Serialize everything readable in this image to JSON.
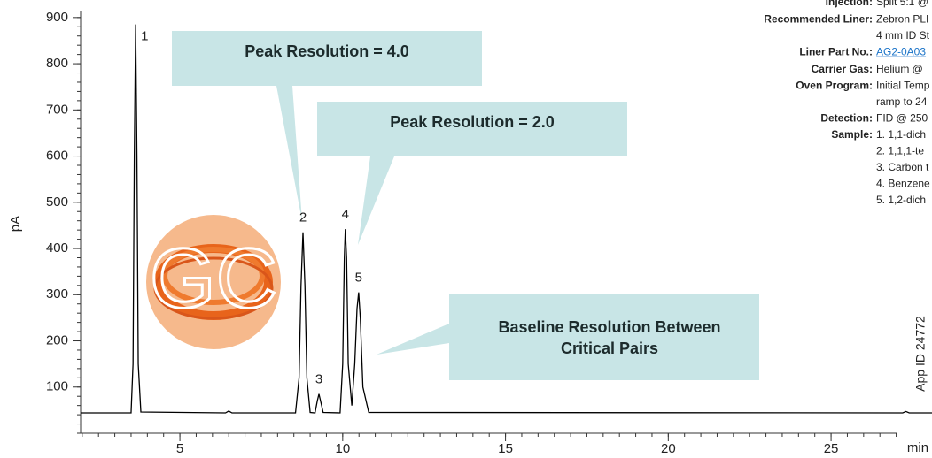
{
  "chart_data": {
    "type": "line",
    "color": "#000000",
    "x": [
      1.95,
      3.5,
      3.56,
      3.6,
      3.64,
      3.68,
      3.72,
      3.8,
      6.4,
      6.5,
      6.6,
      8.55,
      8.66,
      8.72,
      8.78,
      8.84,
      8.9,
      9.0,
      9.15,
      9.22,
      9.27,
      9.32,
      9.4,
      9.92,
      10.0,
      10.05,
      10.08,
      10.12,
      10.17,
      10.28,
      10.37,
      10.44,
      10.49,
      10.54,
      10.62,
      10.8,
      27.2,
      27.3,
      27.4,
      28.1
    ],
    "values": [
      44,
      44,
      150,
      600,
      885,
      600,
      150,
      46,
      44,
      48,
      44,
      44,
      120,
      320,
      435,
      320,
      120,
      45,
      44,
      70,
      85,
      70,
      45,
      44,
      150,
      380,
      442,
      380,
      150,
      60,
      150,
      270,
      305,
      250,
      100,
      45,
      44,
      47,
      44,
      44
    ],
    "peak_labels": [
      "1",
      "2",
      "3",
      "4",
      "5"
    ],
    "xlim": [
      1.95,
      28.1
    ],
    "ylim": [
      0,
      915
    ],
    "xticks": [
      5,
      10,
      15,
      20,
      25
    ],
    "yticks": [
      100,
      200,
      300,
      400,
      500,
      600,
      700,
      800,
      900
    ],
    "xminor_step": 0.5,
    "yminor_step": 20,
    "xlabel": "min",
    "ylabel": "pA"
  },
  "callouts": [
    [
      "Peak Resolution = 4.0"
    ],
    [
      "Peak Resolution = 2.0"
    ],
    [
      "Baseline Resolution Between",
      "Critical Pairs"
    ]
  ],
  "logo": "GC",
  "app_id": "App ID 24772",
  "method": [
    {
      "label": "Injection:",
      "lines": [
        "Split 5:1 @"
      ]
    },
    {
      "label": "Recommended Liner:",
      "lines": [
        "Zebron PLI",
        "4 mm ID St"
      ]
    },
    {
      "label": "Liner Part No.:",
      "lines": [
        "AG2-0A03"
      ]
    },
    {
      "label": "Carrier Gas:",
      "lines": [
        "Helium @"
      ]
    },
    {
      "label": "Oven Program:",
      "lines": [
        "Initial Temp",
        "ramp to 24"
      ]
    },
    {
      "label": "Detection:",
      "lines": [
        "FID @ 250"
      ]
    },
    {
      "label": "Sample:",
      "lines": [
        "1. 1,1-dich",
        "2. 1,1,1-te",
        "3. Carbon t",
        "4. Benzene",
        "5. 1,2-dich"
      ]
    }
  ]
}
